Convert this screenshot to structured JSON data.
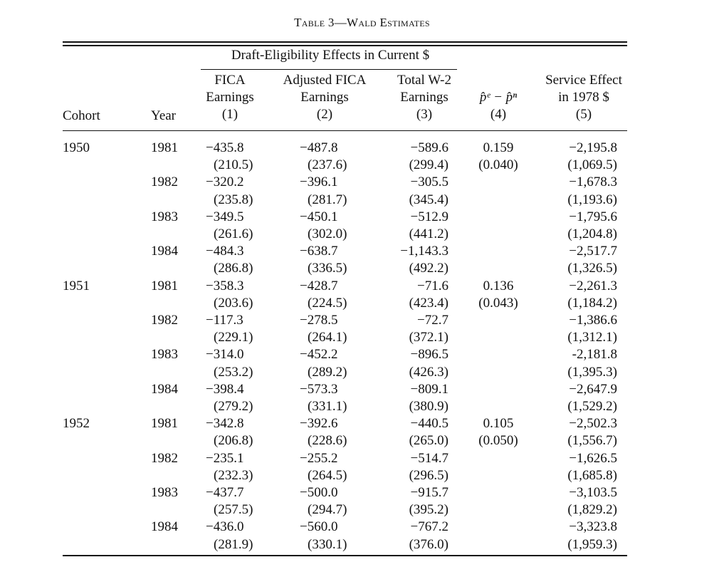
{
  "title": "Table 3—Wald Estimates",
  "header": {
    "spanner": "Draft-Eligibility Effects in Current $",
    "cohort": "Cohort",
    "year": "Year",
    "col1": [
      "FICA",
      "Earnings",
      "(1)"
    ],
    "col2": [
      "Adjusted FICA",
      "Earnings",
      "(2)"
    ],
    "col3": [
      "Total W-2",
      "Earnings",
      "(3)"
    ],
    "col4": [
      "p̂ᵉ − p̂ⁿ",
      "(4)"
    ],
    "col5": [
      "Service Effect",
      "in 1978 $",
      "(5)"
    ]
  },
  "rows": [
    {
      "cohort": "1950",
      "year": "1981",
      "c1": "−435.8",
      "c1se": "(210.5)",
      "c2": "−487.8",
      "c2se": "(237.6)",
      "c3": "−589.6",
      "c3se": "(299.4)",
      "c4": "0.159",
      "c4se": "(0.040)",
      "c5": "−2,195.8",
      "c5se": "(1,069.5)"
    },
    {
      "cohort": "",
      "year": "1982",
      "c1": "−320.2",
      "c1se": "(235.8)",
      "c2": "−396.1",
      "c2se": "(281.7)",
      "c3": "−305.5",
      "c3se": "(345.4)",
      "c4": "",
      "c4se": "",
      "c5": "−1,678.3",
      "c5se": "(1,193.6)"
    },
    {
      "cohort": "",
      "year": "1983",
      "c1": "−349.5",
      "c1se": "(261.6)",
      "c2": "−450.1",
      "c2se": "(302.0)",
      "c3": "−512.9",
      "c3se": "(441.2)",
      "c4": "",
      "c4se": "",
      "c5": "−1,795.6",
      "c5se": "(1,204.8)"
    },
    {
      "cohort": "",
      "year": "1984",
      "c1": "−484.3",
      "c1se": "(286.8)",
      "c2": "−638.7",
      "c2se": "(336.5)",
      "c3": "−1,143.3",
      "c3se": "(492.2)",
      "c4": "",
      "c4se": "",
      "c5": "−2,517.7",
      "c5se": "(1,326.5)"
    },
    {
      "cohort": "1951",
      "year": "1981",
      "c1": "−358.3",
      "c1se": "(203.6)",
      "c2": "−428.7",
      "c2se": "(224.5)",
      "c3": "−71.6",
      "c3se": "(423.4)",
      "c4": "0.136",
      "c4se": "(0.043)",
      "c5": "−2,261.3",
      "c5se": "(1,184.2)"
    },
    {
      "cohort": "",
      "year": "1982",
      "c1": "−117.3",
      "c1se": "(229.1)",
      "c2": "−278.5",
      "c2se": "(264.1)",
      "c3": "−72.7",
      "c3se": "(372.1)",
      "c4": "",
      "c4se": "",
      "c5": "−1,386.6",
      "c5se": "(1,312.1)"
    },
    {
      "cohort": "",
      "year": "1983",
      "c1": "−314.0",
      "c1se": "(253.2)",
      "c2": "−452.2",
      "c2se": "(289.2)",
      "c3": "−896.5",
      "c3se": "(426.3)",
      "c4": "",
      "c4se": "",
      "c5": "-2,181.8",
      "c5se": "(1,395.3)"
    },
    {
      "cohort": "",
      "year": "1984",
      "c1": "−398.4",
      "c1se": "(279.2)",
      "c2": "−573.3",
      "c2se": "(331.1)",
      "c3": "−809.1",
      "c3se": "(380.9)",
      "c4": "",
      "c4se": "",
      "c5": "−2,647.9",
      "c5se": "(1,529.2)"
    },
    {
      "cohort": "1952",
      "year": "1981",
      "c1": "−342.8",
      "c1se": "(206.8)",
      "c2": "−392.6",
      "c2se": "(228.6)",
      "c3": "−440.5",
      "c3se": "(265.0)",
      "c4": "0.105",
      "c4se": "(0.050)",
      "c5": "−2,502.3",
      "c5se": "(1,556.7)"
    },
    {
      "cohort": "",
      "year": "1982",
      "c1": "−235.1",
      "c1se": "(232.3)",
      "c2": "−255.2",
      "c2se": "(264.5)",
      "c3": "−514.7",
      "c3se": "(296.5)",
      "c4": "",
      "c4se": "",
      "c5": "−1,626.5",
      "c5se": "(1,685.8)"
    },
    {
      "cohort": "",
      "year": "1983",
      "c1": "−437.7",
      "c1se": "(257.5)",
      "c2": "−500.0",
      "c2se": "(294.7)",
      "c3": "−915.7",
      "c3se": "(395.2)",
      "c4": "",
      "c4se": "",
      "c5": "−3,103.5",
      "c5se": "(1,829.2)"
    },
    {
      "cohort": "",
      "year": "1984",
      "c1": "−436.0",
      "c1se": "(281.9)",
      "c2": "−560.0",
      "c2se": "(330.1)",
      "c3": "−767.2",
      "c3se": "(376.0)",
      "c4": "",
      "c4se": "",
      "c5": "−3,323.8",
      "c5se": "(1,959.3)"
    }
  ]
}
